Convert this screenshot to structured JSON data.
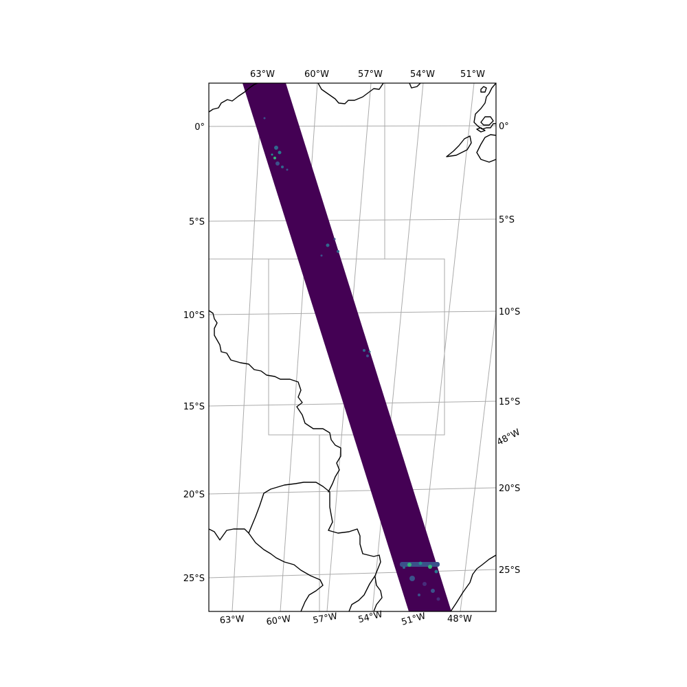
{
  "map": {
    "projection": "rotated / oblique",
    "frame_extent": {
      "lon": [
        -65,
        -46
      ],
      "lat": [
        -27.5,
        2
      ]
    },
    "colormap": "viridis",
    "colors": {
      "swath": "#440154",
      "precip_light": "#31688e",
      "precip_strong": "#35b779",
      "coastline": "#000000",
      "gridline": "#aaaaaa",
      "inset_box": "#aaaaaa",
      "background": "#ffffff"
    },
    "swath": {
      "description_visible": false,
      "orientation": "NNW-SSE descending pass"
    },
    "precip_clusters": [
      {
        "lon": -62.3,
        "lat": -1.5,
        "intensity": "light-moderate"
      },
      {
        "lon": -58.0,
        "lat": -6.2,
        "intensity": "light"
      },
      {
        "lon": -55.0,
        "lat": -12.2,
        "intensity": "light"
      },
      {
        "lon": -50.7,
        "lat": -24.0,
        "intensity": "strong"
      },
      {
        "lon": -50.0,
        "lat": -25.3,
        "intensity": "moderate"
      }
    ],
    "labels": {
      "top": [
        "63°W",
        "60°W",
        "57°W",
        "54°W",
        "51°W"
      ],
      "bottom": [
        "63°W",
        "60°W",
        "57°W",
        "54°W",
        "51°W",
        "48°W"
      ],
      "left": [
        "0°",
        "5°S",
        "10°S",
        "15°S",
        "20°S",
        "25°S"
      ],
      "right": [
        "0°",
        "5°S",
        "10°S",
        "15°S",
        "20°S",
        "25°S"
      ],
      "right_lon": "48°W"
    }
  }
}
